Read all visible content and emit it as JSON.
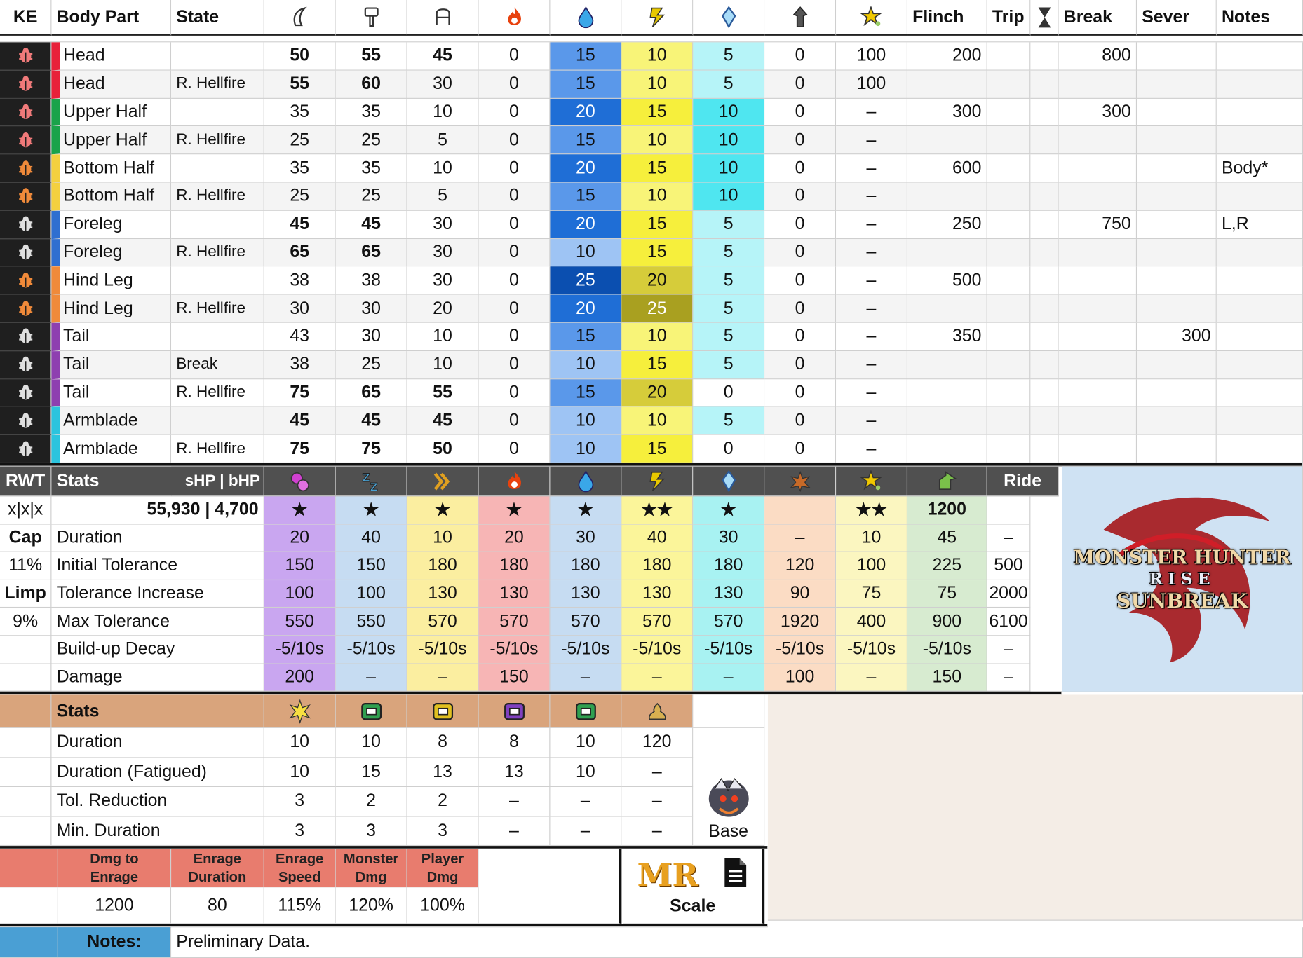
{
  "header": {
    "ke": "KE",
    "body_part": "Body Part",
    "state": "State",
    "flinch": "Flinch",
    "trip": "Trip",
    "break": "Break",
    "sever": "Sever",
    "notes": "Notes",
    "icons": [
      "cut-icon",
      "blunt-icon",
      "shot-icon",
      "fire-icon",
      "water-icon",
      "thunder-icon",
      "ice-icon",
      "dragon-icon",
      "stun-icon"
    ],
    "timer_icon": "hourglass-icon"
  },
  "hitzones": [
    {
      "part": "Head",
      "state": "",
      "cut": "50",
      "blunt": "55",
      "shot": "45",
      "fire": "0",
      "water": "15",
      "thunder": "10",
      "ice": "5",
      "dragon": "0",
      "stun": "100",
      "flinch": "200",
      "trip": "",
      "break": "800",
      "sever": "",
      "notes": "",
      "bold": [
        true,
        true,
        true
      ],
      "color": "#e8213a",
      "ke_color": "#f07a7a"
    },
    {
      "part": "Head",
      "state": "R. Hellfire",
      "cut": "55",
      "blunt": "60",
      "shot": "30",
      "fire": "0",
      "water": "15",
      "thunder": "10",
      "ice": "5",
      "dragon": "0",
      "stun": "100",
      "flinch": "",
      "trip": "",
      "break": "",
      "sever": "",
      "notes": "",
      "bold": [
        true,
        true,
        false
      ],
      "color": "#e8213a",
      "ke_color": "#f07a7a"
    },
    {
      "part": "Upper Half",
      "state": "",
      "cut": "35",
      "blunt": "35",
      "shot": "10",
      "fire": "0",
      "water": "20",
      "thunder": "15",
      "ice": "10",
      "dragon": "0",
      "stun": "–",
      "flinch": "300",
      "trip": "",
      "break": "300",
      "sever": "",
      "notes": "",
      "bold": [
        false,
        false,
        false
      ],
      "color": "#1aa34a",
      "ke_color": "#f07a7a"
    },
    {
      "part": "Upper Half",
      "state": "R. Hellfire",
      "cut": "25",
      "blunt": "25",
      "shot": "5",
      "fire": "0",
      "water": "15",
      "thunder": "10",
      "ice": "10",
      "dragon": "0",
      "stun": "–",
      "flinch": "",
      "trip": "",
      "break": "",
      "sever": "",
      "notes": "",
      "bold": [
        false,
        false,
        false
      ],
      "color": "#1aa34a",
      "ke_color": "#f07a7a"
    },
    {
      "part": "Bottom Half",
      "state": "",
      "cut": "35",
      "blunt": "35",
      "shot": "10",
      "fire": "0",
      "water": "20",
      "thunder": "15",
      "ice": "10",
      "dragon": "0",
      "stun": "–",
      "flinch": "600",
      "trip": "",
      "break": "",
      "sever": "",
      "notes": "Body*",
      "bold": [
        false,
        false,
        false
      ],
      "color": "#f4d03f",
      "ke_color": "#f08a3a"
    },
    {
      "part": "Bottom Half",
      "state": "R. Hellfire",
      "cut": "25",
      "blunt": "25",
      "shot": "5",
      "fire": "0",
      "water": "15",
      "thunder": "10",
      "ice": "10",
      "dragon": "0",
      "stun": "–",
      "flinch": "",
      "trip": "",
      "break": "",
      "sever": "",
      "notes": "",
      "bold": [
        false,
        false,
        false
      ],
      "color": "#f4d03f",
      "ke_color": "#f08a3a"
    },
    {
      "part": "Foreleg",
      "state": "",
      "cut": "45",
      "blunt": "45",
      "shot": "30",
      "fire": "0",
      "water": "20",
      "thunder": "15",
      "ice": "5",
      "dragon": "0",
      "stun": "–",
      "flinch": "250",
      "trip": "",
      "break": "750",
      "sever": "",
      "notes": "L,R",
      "bold": [
        true,
        true,
        false
      ],
      "color": "#2f6fd0",
      "ke_color": "#e0e0e0"
    },
    {
      "part": "Foreleg",
      "state": "R. Hellfire",
      "cut": "65",
      "blunt": "65",
      "shot": "30",
      "fire": "0",
      "water": "10",
      "thunder": "15",
      "ice": "5",
      "dragon": "0",
      "stun": "–",
      "flinch": "",
      "trip": "",
      "break": "",
      "sever": "",
      "notes": "",
      "bold": [
        true,
        true,
        false
      ],
      "color": "#2f6fd0",
      "ke_color": "#e0e0e0"
    },
    {
      "part": "Hind Leg",
      "state": "",
      "cut": "38",
      "blunt": "38",
      "shot": "30",
      "fire": "0",
      "water": "25",
      "thunder": "20",
      "ice": "5",
      "dragon": "0",
      "stun": "–",
      "flinch": "500",
      "trip": "",
      "break": "",
      "sever": "",
      "notes": "",
      "bold": [
        false,
        false,
        false
      ],
      "color": "#f08a3a",
      "ke_color": "#f08a3a"
    },
    {
      "part": "Hind Leg",
      "state": "R. Hellfire",
      "cut": "30",
      "blunt": "30",
      "shot": "20",
      "fire": "0",
      "water": "20",
      "thunder": "25",
      "ice": "5",
      "dragon": "0",
      "stun": "–",
      "flinch": "",
      "trip": "",
      "break": "",
      "sever": "",
      "notes": "",
      "bold": [
        false,
        false,
        false
      ],
      "color": "#f08a3a",
      "ke_color": "#f08a3a"
    },
    {
      "part": "Tail",
      "state": "",
      "cut": "43",
      "blunt": "30",
      "shot": "10",
      "fire": "0",
      "water": "15",
      "thunder": "10",
      "ice": "5",
      "dragon": "0",
      "stun": "–",
      "flinch": "350",
      "trip": "",
      "break": "",
      "sever": "300",
      "notes": "",
      "bold": [
        false,
        false,
        false
      ],
      "color": "#8e3fb0",
      "ke_color": "#e0e0e0"
    },
    {
      "part": "Tail",
      "state": "Break",
      "cut": "38",
      "blunt": "25",
      "shot": "10",
      "fire": "0",
      "water": "10",
      "thunder": "15",
      "ice": "5",
      "dragon": "0",
      "stun": "–",
      "flinch": "",
      "trip": "",
      "break": "",
      "sever": "",
      "notes": "",
      "bold": [
        false,
        false,
        false
      ],
      "color": "#8e3fb0",
      "ke_color": "#e0e0e0"
    },
    {
      "part": "Tail",
      "state": "R. Hellfire",
      "cut": "75",
      "blunt": "65",
      "shot": "55",
      "fire": "0",
      "water": "15",
      "thunder": "20",
      "ice": "0",
      "dragon": "0",
      "stun": "–",
      "flinch": "",
      "trip": "",
      "break": "",
      "sever": "",
      "notes": "",
      "bold": [
        true,
        true,
        true
      ],
      "color": "#8e3fb0",
      "ke_color": "#e0e0e0"
    },
    {
      "part": "Armblade",
      "state": "",
      "cut": "45",
      "blunt": "45",
      "shot": "45",
      "fire": "0",
      "water": "10",
      "thunder": "10",
      "ice": "5",
      "dragon": "0",
      "stun": "–",
      "flinch": "",
      "trip": "",
      "break": "",
      "sever": "",
      "notes": "",
      "bold": [
        true,
        true,
        true
      ],
      "color": "#2bc4de",
      "ke_color": "#e0e0e0"
    },
    {
      "part": "Armblade",
      "state": "R. Hellfire",
      "cut": "75",
      "blunt": "75",
      "shot": "50",
      "fire": "0",
      "water": "10",
      "thunder": "15",
      "ice": "0",
      "dragon": "0",
      "stun": "–",
      "flinch": "",
      "trip": "",
      "break": "",
      "sever": "",
      "notes": "",
      "bold": [
        true,
        true,
        true
      ],
      "color": "#2bc4de",
      "ke_color": "#e0e0e0"
    }
  ],
  "status": {
    "rwt": "RWT",
    "stats_label": "Stats",
    "shp_bhp_label": "sHP  |   bHP",
    "hp_value": "55,930 | 4,700",
    "ride_label": "Ride",
    "side": [
      {
        "label": "x|x|x",
        "bold": false
      },
      {
        "label": "Cap",
        "bold": true
      },
      {
        "label": "11%",
        "bold": false
      },
      {
        "label": "Limp",
        "bold": true
      },
      {
        "label": "9%",
        "bold": false
      },
      {
        "label": "",
        "bold": false
      },
      {
        "label": "",
        "bold": false
      }
    ],
    "icons": [
      "poison-icon",
      "sleep-icon",
      "paralysis-icon",
      "fireblight-icon",
      "waterblight-icon",
      "thunderblight-icon",
      "iceblight-icon",
      "blast-icon",
      "stun-icon",
      "exhaust-icon"
    ],
    "stars": [
      "★",
      "★",
      "★",
      "★",
      "★",
      "★★",
      "★",
      "",
      "★★",
      "1200",
      ""
    ],
    "rows": [
      {
        "label": "Duration",
        "values": [
          "20",
          "40",
          "10",
          "20",
          "30",
          "40",
          "30",
          "–",
          "10",
          "45",
          "–"
        ]
      },
      {
        "label": "Initial Tolerance",
        "values": [
          "150",
          "150",
          "180",
          "180",
          "180",
          "180",
          "180",
          "120",
          "100",
          "225",
          "500"
        ]
      },
      {
        "label": "Tolerance Increase",
        "values": [
          "100",
          "100",
          "130",
          "130",
          "130",
          "130",
          "130",
          "90",
          "75",
          "75",
          "2000"
        ]
      },
      {
        "label": "Max Tolerance",
        "values": [
          "550",
          "550",
          "570",
          "570",
          "570",
          "570",
          "570",
          "1920",
          "400",
          "900",
          "6100"
        ]
      },
      {
        "label": "Build-up Decay",
        "values": [
          "-5/10s",
          "-5/10s",
          "-5/10s",
          "-5/10s",
          "-5/10s",
          "-5/10s",
          "-5/10s",
          "-5/10s",
          "-5/10s",
          "-5/10s",
          "–"
        ]
      },
      {
        "label": "Damage",
        "values": [
          "200",
          "–",
          "–",
          "150",
          "–",
          "–",
          "–",
          "100",
          "–",
          "150",
          "–"
        ]
      }
    ],
    "col_colors": [
      "#c9a6f0",
      "#c6dcf2",
      "#fbeea0",
      "#f7b5b5",
      "#c6dcf2",
      "#fbf59a",
      "#a8f2f2",
      "#fbdcc4",
      "#fbf6c0",
      "#d7ebd0",
      "#ffffff"
    ]
  },
  "logo": {
    "line1": "MONSTER HUNTER",
    "line2": "RISE",
    "line3": "SUNBREAK"
  },
  "items": {
    "stats_label": "Stats",
    "icons": [
      "flash-icon",
      "shock-trap-icon",
      "pitfall-trap-icon",
      "dragonator-icon",
      "screamer-pod-icon",
      "dung-pod-icon"
    ],
    "rows": [
      {
        "label": "Duration",
        "values": [
          "10",
          "10",
          "8",
          "8",
          "10",
          "120"
        ]
      },
      {
        "label": "Duration (Fatigued)",
        "values": [
          "10",
          "15",
          "13",
          "13",
          "10",
          "–"
        ]
      },
      {
        "label": "Tol. Reduction",
        "values": [
          "3",
          "2",
          "2",
          "–",
          "–",
          "–"
        ]
      },
      {
        "label": "Min. Duration",
        "values": [
          "3",
          "3",
          "3",
          "–",
          "–",
          "–"
        ]
      }
    ],
    "base_label": "Base"
  },
  "enrage": {
    "headers": [
      "Dmg to|Enrage",
      "Enrage|Duration",
      "Enrage|Speed",
      "Monster|Dmg",
      "Player|Dmg"
    ],
    "values": [
      "1200",
      "80",
      "115%",
      "120%",
      "100%"
    ]
  },
  "scale": {
    "mr_label": "MR",
    "scale_label": "Scale"
  },
  "notes": {
    "label": "Notes:",
    "text": "Preliminary Data."
  }
}
